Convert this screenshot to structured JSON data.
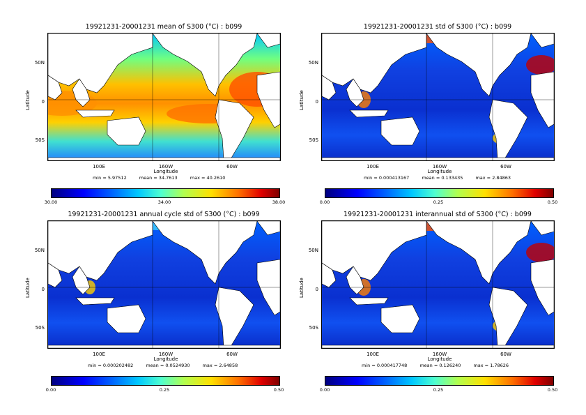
{
  "panels": [
    {
      "title": "19921231-20001231 mean of S300 (°C) : b099",
      "stats": {
        "min": "min = 5.97512",
        "mean": "mean = 34.7613",
        "max": "max = 40.2610"
      },
      "colorbar_ticks": [
        "30.00",
        "34.00",
        "38.00"
      ],
      "field": "mean"
    },
    {
      "title": "19921231-20001231 std of S300 (°C) : b099",
      "stats": {
        "min": "min = 0.000413167",
        "mean": "mean = 0.133435",
        "max": "max = 2.84863"
      },
      "colorbar_ticks": [
        "0.00",
        "0.25",
        "0.50"
      ],
      "field": "std"
    },
    {
      "title": "19921231-20001231 annual cycle std of S300 (°C) : b099",
      "stats": {
        "min": "min = 0.000202482",
        "mean": "mean = 0.0524930",
        "max": "max = 2.64858"
      },
      "colorbar_ticks": [
        "0.00",
        "0.25",
        "0.50"
      ],
      "field": "annual"
    },
    {
      "title": "19921231-20001231 interannual std of S300 (°C) : b099",
      "stats": {
        "min": "min = 0.000417748",
        "mean": "mean = 0.126240",
        "max": "max = 1.78626"
      },
      "colorbar_ticks": [
        "0.00",
        "0.25",
        "0.50"
      ],
      "field": "inter"
    }
  ],
  "axes": {
    "ylabel": "Latitude",
    "xlabel": "Longitude",
    "yticks": [
      "50N",
      "0",
      "50S"
    ],
    "xticks": [
      "100E",
      "160W",
      "60W"
    ]
  },
  "colors": {
    "land": "#ffffff",
    "low": "#0000cd",
    "high": "#ff0000"
  }
}
